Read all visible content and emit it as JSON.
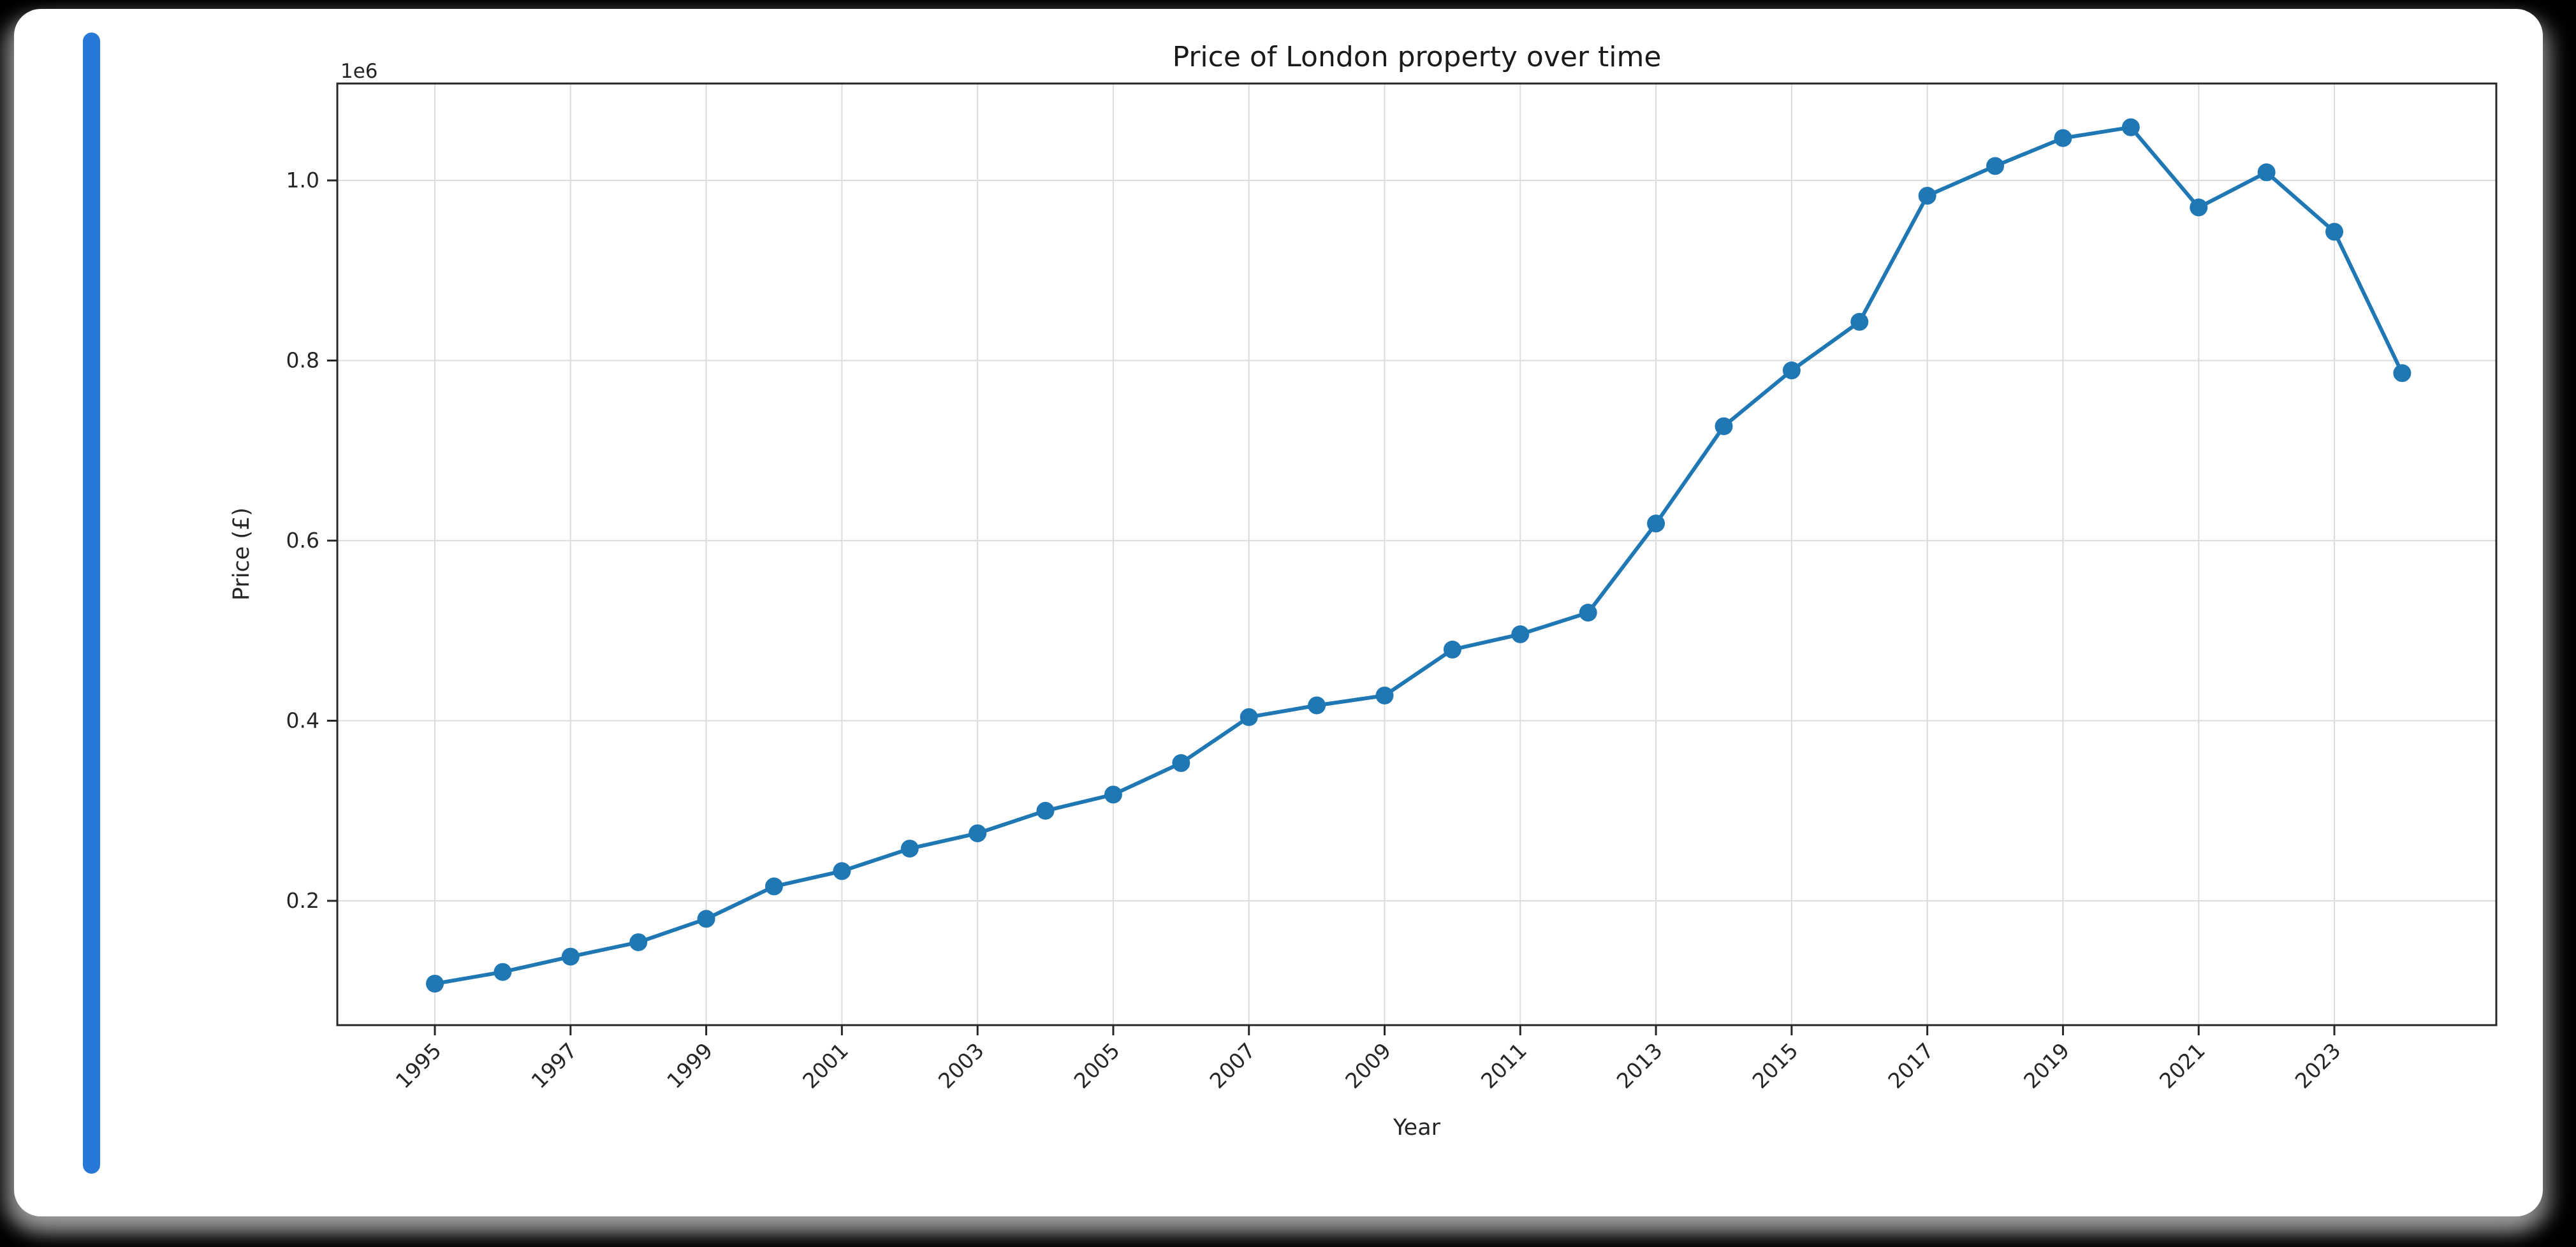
{
  "page": {
    "background_color": "#000000",
    "card_color": "#ffffff",
    "accent_bar_color": "#2878d8"
  },
  "chart_data": {
    "type": "line",
    "title": "Price of London property over time",
    "xlabel": "Year",
    "ylabel": "Price (£)",
    "y_offset_label": "1e6",
    "x": [
      1995,
      1996,
      1997,
      1998,
      1999,
      2000,
      2001,
      2002,
      2003,
      2004,
      2005,
      2006,
      2007,
      2008,
      2009,
      2010,
      2011,
      2012,
      2013,
      2014,
      2015,
      2016,
      2017,
      2018,
      2019,
      2020,
      2021,
      2022,
      2023,
      2024
    ],
    "values": [
      108000,
      121000,
      138000,
      154000,
      180000,
      216000,
      233000,
      258000,
      275000,
      300000,
      318000,
      353000,
      404000,
      417000,
      428000,
      479000,
      496000,
      520000,
      619000,
      727000,
      789000,
      843000,
      983000,
      1016000,
      1047000,
      1059000,
      970000,
      1009000,
      943000,
      786000
    ],
    "x_tick_labels": [
      "1995",
      "1997",
      "1999",
      "2001",
      "2003",
      "2005",
      "2007",
      "2009",
      "2011",
      "2013",
      "2015",
      "2017",
      "2019",
      "2021",
      "2023"
    ],
    "y_ticks": [
      200000,
      400000,
      600000,
      800000,
      1000000
    ],
    "y_tick_labels": [
      "0.2",
      "0.4",
      "0.6",
      "0.8",
      "1.0"
    ],
    "ylim": [
      70000,
      1130000
    ],
    "grid": true,
    "legend": "none",
    "line_color": "#1f77b4",
    "marker": "circle",
    "grid_color": "#dcdcdc",
    "spine_color": "#262626",
    "text_color": "#262626"
  }
}
